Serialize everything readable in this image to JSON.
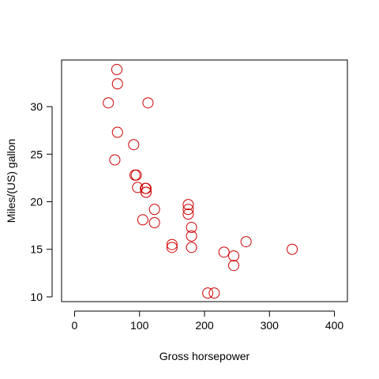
{
  "chart_data": {
    "type": "scatter",
    "title": "",
    "xlabel": "Gross horsepower",
    "ylabel": "Miles/(US) gallon",
    "xlim": [
      -20,
      420
    ],
    "ylim": [
      9.5,
      34.9
    ],
    "x_ticks": [
      0,
      100,
      200,
      300,
      400
    ],
    "y_ticks": [
      10,
      15,
      20,
      25,
      30
    ],
    "grid": false,
    "marker": "open-circle",
    "point_color": "#cc0000",
    "points": [
      {
        "x": 110,
        "y": 21.0
      },
      {
        "x": 110,
        "y": 21.0
      },
      {
        "x": 93,
        "y": 22.8
      },
      {
        "x": 110,
        "y": 21.4
      },
      {
        "x": 175,
        "y": 18.7
      },
      {
        "x": 105,
        "y": 18.1
      },
      {
        "x": 245,
        "y": 14.3
      },
      {
        "x": 62,
        "y": 24.4
      },
      {
        "x": 95,
        "y": 22.8
      },
      {
        "x": 123,
        "y": 19.2
      },
      {
        "x": 123,
        "y": 17.8
      },
      {
        "x": 180,
        "y": 16.4
      },
      {
        "x": 180,
        "y": 17.3
      },
      {
        "x": 180,
        "y": 15.2
      },
      {
        "x": 205,
        "y": 10.4
      },
      {
        "x": 215,
        "y": 10.4
      },
      {
        "x": 230,
        "y": 14.7
      },
      {
        "x": 66,
        "y": 32.4
      },
      {
        "x": 52,
        "y": 30.4
      },
      {
        "x": 65,
        "y": 33.9
      },
      {
        "x": 97,
        "y": 21.5
      },
      {
        "x": 150,
        "y": 15.5
      },
      {
        "x": 150,
        "y": 15.2
      },
      {
        "x": 245,
        "y": 13.3
      },
      {
        "x": 175,
        "y": 19.2
      },
      {
        "x": 66,
        "y": 27.3
      },
      {
        "x": 91,
        "y": 26.0
      },
      {
        "x": 113,
        "y": 30.4
      },
      {
        "x": 264,
        "y": 15.8
      },
      {
        "x": 175,
        "y": 19.7
      },
      {
        "x": 335,
        "y": 15.0
      },
      {
        "x": 109,
        "y": 21.4
      }
    ]
  }
}
